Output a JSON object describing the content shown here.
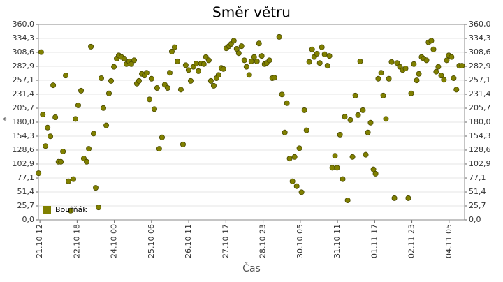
{
  "chart_data": {
    "type": "scatter",
    "title": "Směr větru",
    "xlabel": "Čas",
    "ylabel": "°",
    "series": [
      {
        "name": "Bouřňák",
        "color": "#808000",
        "x": [
          -1.1,
          1,
          2.3,
          4.5,
          6.2,
          8.4,
          10.7,
          12.4,
          15,
          16.9,
          18.6,
          20.8,
          23,
          24.8,
          27,
          28.7,
          30.9,
          33.2,
          35.4,
          37.7,
          39.4,
          41.1,
          43.3,
          45,
          47.3,
          49.5,
          51.2,
          53.5,
          55.7,
          57.4,
          59.7,
          61.9,
          63.6,
          65.8,
          68.1,
          69.8,
          72,
          73.7,
          76,
          78.2,
          79.9,
          82.2,
          84.4,
          86.1,
          88.4,
          90,
          92.3,
          94.5,
          96.2,
          98.5,
          100.7,
          103,
          104.7,
          106.4,
          108.6,
          110.9,
          113.7,
          115.4,
          117.6,
          119.9,
          121.6,
          123.8,
          126.1,
          127.8,
          130,
          132.2,
          133.9,
          136.2,
          137.9,
          140.2,
          142.4,
          144.1,
          146.3,
          148,
          150.3,
          152.5,
          154.2,
          156.4,
          158.7,
          160.4,
          162.6,
          164.9,
          166.6,
          168.8,
          170.5,
          172.8,
          175,
          176.7,
          178.9,
          181.2,
          182.9,
          185.1,
          187.4,
          189.1,
          193,
          195.2,
          197.5,
          199.2,
          201.4,
          203.7,
          205.4,
          207.1,
          209.3,
          211,
          213.3,
          215,
          217.2,
          219.5,
          221.2,
          223.4,
          225.7,
          227.4,
          229.6,
          231.9,
          233.5,
          235.8,
          238,
          239.7,
          242,
          244.2,
          245.9,
          248.2,
          250.4,
          252.1,
          254.4,
          256.6,
          258.3,
          260.5,
          262.8,
          264.5,
          266.7,
          269,
          270.7,
          272.9,
          275.2,
          276.9,
          279.1,
          281.4,
          283.6,
          285.9,
          288.1,
          290.4,
          292.6,
          294.9,
          297.1,
          299.4,
          301.6,
          303.9,
          305.6,
          307.8,
          309.5,
          311.8,
          313.4,
          315.7,
          317.4,
          319.6,
          321.3,
          323.6,
          325.8,
          328.1,
          329.7,
          332,
          333.7,
          335.9,
          338.2,
          340.4
        ],
        "values": [
          86,
          309,
          194,
          136,
          170,
          154,
          248,
          189,
          107,
          107,
          126,
          266,
          71,
          17,
          75,
          186,
          211,
          238,
          113,
          107,
          131,
          319,
          159,
          59,
          23,
          261,
          206,
          174,
          233,
          256,
          282,
          297,
          303,
          300,
          297,
          287,
          292,
          287,
          294,
          251,
          256,
          269,
          266,
          271,
          222,
          260,
          204,
          243,
          131,
          152,
          249,
          243,
          271,
          310,
          318,
          292,
          240,
          139,
          285,
          276,
          256,
          282,
          288,
          274,
          288,
          287,
          300,
          294,
          256,
          247,
          261,
          267,
          280,
          278,
          316,
          320,
          324,
          330,
          315,
          307,
          320,
          294,
          282,
          267,
          292,
          300,
          292,
          325,
          302,
          287,
          289,
          294,
          261,
          262,
          337,
          231,
          161,
          215,
          113,
          71,
          116,
          62,
          132,
          51,
          202,
          165,
          291,
          314,
          300,
          306,
          289,
          318,
          305,
          284,
          302,
          96,
          118,
          96,
          157,
          75,
          190,
          36,
          184,
          116,
          229,
          193,
          292,
          202,
          120,
          161,
          179,
          93,
          85,
          260,
          271,
          229,
          186,
          260,
          291,
          40,
          289,
          282,
          276,
          279,
          40,
          233,
          287,
          257,
          269,
          300,
          297,
          294,
          327,
          330,
          314,
          273,
          282,
          266,
          258,
          294,
          303,
          300,
          261,
          240,
          284,
          284
        ]
      }
    ],
    "xlim": [
      -1.2,
      342.5
    ],
    "xticks": [
      {
        "value": 0,
        "label": "21.10 12"
      },
      {
        "value": 30,
        "label": "22.10 18"
      },
      {
        "value": 60,
        "label": "24.10 00"
      },
      {
        "value": 90,
        "label": "25.10 06"
      },
      {
        "value": 120,
        "label": "26.10 11"
      },
      {
        "value": 150,
        "label": "27.10 17"
      },
      {
        "value": 180,
        "label": "28.10 23"
      },
      {
        "value": 210,
        "label": "30.10 05"
      },
      {
        "value": 240,
        "label": "31.10 11"
      },
      {
        "value": 270,
        "label": "01.11 17"
      },
      {
        "value": 300,
        "label": "02.11 23"
      },
      {
        "value": 330,
        "label": "04.11 05"
      }
    ],
    "ylim": [
      0,
      360
    ],
    "yticks": [
      {
        "value": 0,
        "label": "0,0"
      },
      {
        "value": 25.7,
        "label": "25,7"
      },
      {
        "value": 51.4,
        "label": "51,4"
      },
      {
        "value": 77.1,
        "label": "77,1"
      },
      {
        "value": 102.9,
        "label": "102,9"
      },
      {
        "value": 128.6,
        "label": "128,6"
      },
      {
        "value": 154.3,
        "label": "154,3"
      },
      {
        "value": 180,
        "label": "180,0"
      },
      {
        "value": 205.7,
        "label": "205,7"
      },
      {
        "value": 231.4,
        "label": "231,4"
      },
      {
        "value": 257.1,
        "label": "257,1"
      },
      {
        "value": 282.9,
        "label": "282,9"
      },
      {
        "value": 308.6,
        "label": "308,6"
      },
      {
        "value": 334.3,
        "label": "334,3"
      },
      {
        "value": 360,
        "label": "360,0"
      }
    ],
    "y2lim": [
      0,
      360
    ],
    "y2ticks": [
      {
        "value": 0,
        "label": "0,0"
      },
      {
        "value": 25.7,
        "label": "25,7"
      },
      {
        "value": 51.4,
        "label": "51,4"
      },
      {
        "value": 77.1,
        "label": "77,1"
      },
      {
        "value": 102.9,
        "label": "102,9"
      },
      {
        "value": 128.6,
        "label": "128,6"
      },
      {
        "value": 154.3,
        "label": "154,3"
      },
      {
        "value": 180,
        "label": "180,0"
      },
      {
        "value": 205.7,
        "label": "205,7"
      },
      {
        "value": 231.4,
        "label": "231,4"
      },
      {
        "value": 257.1,
        "label": "257,1"
      },
      {
        "value": 282.9,
        "label": "282,9"
      },
      {
        "value": 308.6,
        "label": "308,6"
      },
      {
        "value": 334.3,
        "label": "334,3"
      },
      {
        "value": 360,
        "label": "360,0"
      }
    ],
    "grid": true,
    "legend": "lower left"
  }
}
